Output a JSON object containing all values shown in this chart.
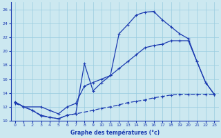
{
  "xlabel": "Graphe des températures (°c)",
  "xlim": [
    -0.5,
    23.5
  ],
  "ylim": [
    10,
    27
  ],
  "xticks": [
    0,
    1,
    2,
    3,
    4,
    5,
    6,
    7,
    8,
    9,
    10,
    11,
    12,
    13,
    14,
    15,
    16,
    17,
    18,
    19,
    20,
    21,
    22,
    23
  ],
  "yticks": [
    10,
    12,
    14,
    16,
    18,
    20,
    22,
    24,
    26
  ],
  "background_color": "#cce8f0",
  "grid_color": "#99cce0",
  "line_color": "#1a3ab0",
  "curve1_x": [
    0,
    1,
    2,
    3,
    4,
    5,
    6,
    7,
    8,
    9,
    10,
    11,
    12,
    13,
    14,
    15,
    16,
    17,
    18,
    19,
    20,
    21,
    22,
    23
  ],
  "curve1_y": [
    12.7,
    12.0,
    11.5,
    10.7,
    10.5,
    10.3,
    10.8,
    11.0,
    18.2,
    14.3,
    15.5,
    16.5,
    22.5,
    23.8,
    25.2,
    25.6,
    25.7,
    24.5,
    23.5,
    22.5,
    21.8,
    18.5,
    15.5,
    13.8
  ],
  "curve2_x": [
    0,
    1,
    3,
    4,
    5,
    6,
    7,
    8,
    9,
    10,
    11,
    12,
    13,
    14,
    15,
    16,
    17,
    18,
    19,
    20,
    21,
    22,
    23
  ],
  "curve2_y": [
    12.7,
    12.0,
    12.0,
    11.5,
    11.0,
    12.0,
    12.5,
    15.0,
    15.5,
    16.0,
    16.5,
    17.5,
    18.5,
    19.5,
    20.5,
    20.8,
    21.0,
    21.5,
    21.5,
    21.5,
    18.5,
    15.5,
    13.8
  ],
  "curve3_x": [
    0,
    2,
    3,
    4,
    5,
    6,
    7,
    9,
    10,
    11,
    12,
    13,
    14,
    15,
    16,
    17,
    18,
    19,
    20,
    21,
    22,
    23
  ],
  "curve3_y": [
    12.5,
    11.5,
    10.8,
    10.5,
    10.3,
    10.8,
    11.0,
    11.5,
    11.8,
    12.0,
    12.3,
    12.6,
    12.8,
    13.0,
    13.3,
    13.5,
    13.7,
    13.8,
    13.8,
    13.8,
    13.8,
    13.8
  ]
}
